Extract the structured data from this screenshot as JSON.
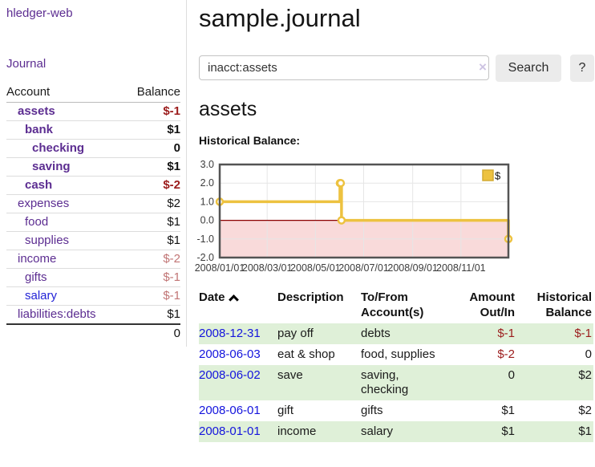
{
  "app": {
    "brand": "hledger-web",
    "nav": {
      "journal": "Journal"
    }
  },
  "sidebar": {
    "headers": {
      "account": "Account",
      "balance": "Balance"
    },
    "accounts": [
      {
        "name": "assets",
        "indent": 1,
        "bold": true,
        "balance": "$-1"
      },
      {
        "name": "bank",
        "indent": 2,
        "bold": true,
        "balance": "$1"
      },
      {
        "name": "checking",
        "indent": 3,
        "bold": true,
        "balance": "0"
      },
      {
        "name": "saving",
        "indent": 3,
        "bold": true,
        "balance": "$1"
      },
      {
        "name": "cash",
        "indent": 2,
        "bold": true,
        "balance": "$-2"
      },
      {
        "name": "expenses",
        "indent": 1,
        "bold": false,
        "balance": "$2"
      },
      {
        "name": "food",
        "indent": 2,
        "bold": false,
        "balance": "$1"
      },
      {
        "name": "supplies",
        "indent": 2,
        "bold": false,
        "balance": "$1"
      },
      {
        "name": "income",
        "indent": 1,
        "bold": false,
        "balance": "$-2"
      },
      {
        "name": "gifts",
        "indent": 2,
        "bold": false,
        "balance": "$-1"
      },
      {
        "name": "salary",
        "indent": 2,
        "bold": false,
        "balance": "$-1"
      },
      {
        "name": "liabilities:debts",
        "indent": 1,
        "bold": false,
        "balance": "$1"
      }
    ],
    "total": "0"
  },
  "header": {
    "title": "sample.journal"
  },
  "search": {
    "value": "inacct:assets",
    "clear_icon": "×",
    "search_label": "Search",
    "help_label": "?"
  },
  "register": {
    "heading": "assets",
    "chart_title": "Historical Balance:",
    "table": {
      "headers": {
        "date": "Date",
        "description": "Description",
        "accounts_l1": "To/From",
        "accounts_l2": "Account(s)",
        "amount_l1": "Amount",
        "amount_l2": "Out/In",
        "balance_l1": "Historical",
        "balance_l2": "Balance"
      },
      "rows": [
        {
          "date": "2008-12-31",
          "description": "pay off",
          "accounts": "debts",
          "amount": "$-1",
          "balance": "$-1",
          "shade": true
        },
        {
          "date": "2008-06-03",
          "description": "eat & shop",
          "accounts": "food, supplies",
          "amount": "$-2",
          "balance": "0",
          "shade": false
        },
        {
          "date": "2008-06-02",
          "description": "save",
          "accounts": "saving, checking",
          "amount": "0",
          "balance": "$2",
          "shade": true
        },
        {
          "date": "2008-06-01",
          "description": "gift",
          "accounts": "gifts",
          "amount": "$1",
          "balance": "$2",
          "shade": false
        },
        {
          "date": "2008-01-01",
          "description": "income",
          "accounts": "salary",
          "amount": "$1",
          "balance": "$1",
          "shade": true
        }
      ]
    }
  },
  "chart_data": {
    "type": "line",
    "subtype": "step",
    "title": "Historical Balance:",
    "x_range": [
      "2008-01-01",
      "2008-12-31"
    ],
    "ylim": [
      -2.0,
      3.0
    ],
    "yticks": [
      3.0,
      2.0,
      1.0,
      0.0,
      -1.0,
      -2.0
    ],
    "xticks": [
      "2008-01-01",
      "2008-03-01",
      "2008-05-01",
      "2008-07-01",
      "2008-09-01",
      "2008-11-01"
    ],
    "xtick_label_format": "YYYY/MM/DD",
    "grid": true,
    "legend_position": "top-right",
    "series": [
      {
        "name": "$",
        "points": [
          {
            "date": "2008-01-01",
            "value": 1
          },
          {
            "date": "2008-06-01",
            "value": 2
          },
          {
            "date": "2008-06-02",
            "value": 2
          },
          {
            "date": "2008-06-03",
            "value": 0
          },
          {
            "date": "2008-12-31",
            "value": -1
          }
        ]
      }
    ],
    "colors": {
      "line": "#edc240",
      "marker_fill": "#ffffff",
      "negative_region": "#f9dada",
      "zero_line": "#8b0000",
      "grid": "#e6e6e6",
      "border": "#545454"
    }
  }
}
